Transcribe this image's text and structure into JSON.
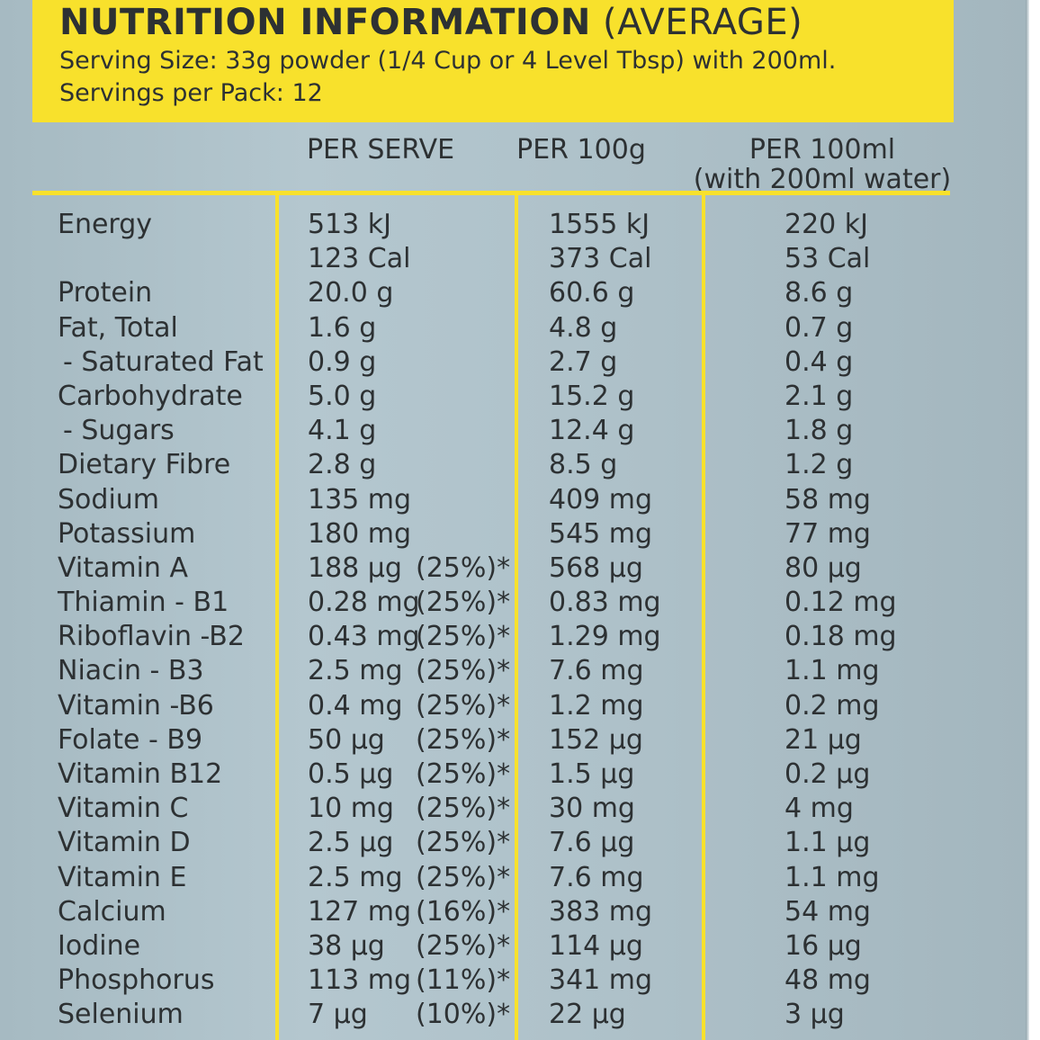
{
  "title": {
    "bold": "NUTRITION INFORMATION",
    "normal": " (AVERAGE)"
  },
  "serving_size": "Serving Size: 33g powder (1/4 Cup or 4 Level Tbsp) with 200ml.",
  "servings_per_pack": "Servings per Pack: 12",
  "columns": {
    "per_serve": "PER SERVE",
    "per_100g": "PER 100g",
    "per_100ml_line1": "PER 100ml",
    "per_100ml_line2": "(with 200ml water)"
  },
  "rows": [
    {
      "nutrient": "Energy",
      "serve": "513 kJ",
      "pct": "",
      "g100": "1555 kJ",
      "ml100": "220 kJ"
    },
    {
      "nutrient": "",
      "serve": "123 Cal",
      "pct": "",
      "g100": "373 Cal",
      "ml100": "53 Cal"
    },
    {
      "nutrient": "Protein",
      "serve": "20.0 g",
      "pct": "",
      "g100": "60.6 g",
      "ml100": "8.6 g"
    },
    {
      "nutrient": "Fat, Total",
      "serve": "1.6 g",
      "pct": "",
      "g100": "4.8 g",
      "ml100": "0.7 g"
    },
    {
      "nutrient": "- Saturated Fat",
      "serve": "0.9 g",
      "pct": "",
      "g100": "2.7 g",
      "ml100": "0.4 g"
    },
    {
      "nutrient": "Carbohydrate",
      "serve": "5.0 g",
      "pct": "",
      "g100": "15.2 g",
      "ml100": "2.1 g"
    },
    {
      "nutrient": "- Sugars",
      "serve": "4.1 g",
      "pct": "",
      "g100": "12.4 g",
      "ml100": "1.8 g"
    },
    {
      "nutrient": "Dietary Fibre",
      "serve": "2.8 g",
      "pct": "",
      "g100": "8.5 g",
      "ml100": "1.2 g"
    },
    {
      "nutrient": "Sodium",
      "serve": "135 mg",
      "pct": "",
      "g100": "409 mg",
      "ml100": "58 mg"
    },
    {
      "nutrient": "Potassium",
      "serve": "180 mg",
      "pct": "",
      "g100": "545 mg",
      "ml100": "77 mg"
    },
    {
      "nutrient": "Vitamin A",
      "serve": "188 µg",
      "pct": "(25%)*",
      "g100": "568 µg",
      "ml100": "80 µg"
    },
    {
      "nutrient": "Thiamin - B1",
      "serve": "0.28 mg",
      "pct": "(25%)*",
      "g100": "0.83 mg",
      "ml100": "0.12 mg"
    },
    {
      "nutrient": "Riboflavin -B2",
      "serve": "0.43 mg",
      "pct": "(25%)*",
      "g100": "1.29 mg",
      "ml100": "0.18 mg"
    },
    {
      "nutrient": "Niacin - B3",
      "serve": "2.5 mg",
      "pct": "(25%)*",
      "g100": "7.6 mg",
      "ml100": "1.1 mg"
    },
    {
      "nutrient": "Vitamin -B6",
      "serve": "0.4 mg",
      "pct": "(25%)*",
      "g100": "1.2 mg",
      "ml100": "0.2 mg"
    },
    {
      "nutrient": "Folate - B9",
      "serve": "50 µg",
      "pct": "(25%)*",
      "g100": "152 µg",
      "ml100": "21 µg"
    },
    {
      "nutrient": "Vitamin B12",
      "serve": "0.5 µg",
      "pct": "(25%)*",
      "g100": "1.5 µg",
      "ml100": "0.2 µg"
    },
    {
      "nutrient": "Vitamin C",
      "serve": "10 mg",
      "pct": "(25%)*",
      "g100": "30 mg",
      "ml100": "4 mg"
    },
    {
      "nutrient": "Vitamin D",
      "serve": "2.5 µg",
      "pct": "(25%)*",
      "g100": "7.6 µg",
      "ml100": "1.1 µg"
    },
    {
      "nutrient": "Vitamin E",
      "serve": "2.5 mg",
      "pct": "(25%)*",
      "g100": "7.6 mg",
      "ml100": "1.1 mg"
    },
    {
      "nutrient": "Calcium",
      "serve": "127 mg",
      "pct": "(16%)*",
      "g100": "383 mg",
      "ml100": "54 mg"
    },
    {
      "nutrient": "Iodine",
      "serve": "38 µg",
      "pct": "(25%)*",
      "g100": "114 µg",
      "ml100": "16 µg"
    },
    {
      "nutrient": "Phosphorus",
      "serve": "113 mg",
      "pct": "(11%)*",
      "g100": "341 mg",
      "ml100": "48 mg"
    },
    {
      "nutrient": "Selenium",
      "serve": "7 µg",
      "pct": "(10%)*",
      "g100": "22 µg",
      "ml100": "3 µg"
    }
  ],
  "colors": {
    "panel": "#b0c3cb",
    "accent_yellow": "#f8e12c",
    "text": "#2d3133"
  }
}
